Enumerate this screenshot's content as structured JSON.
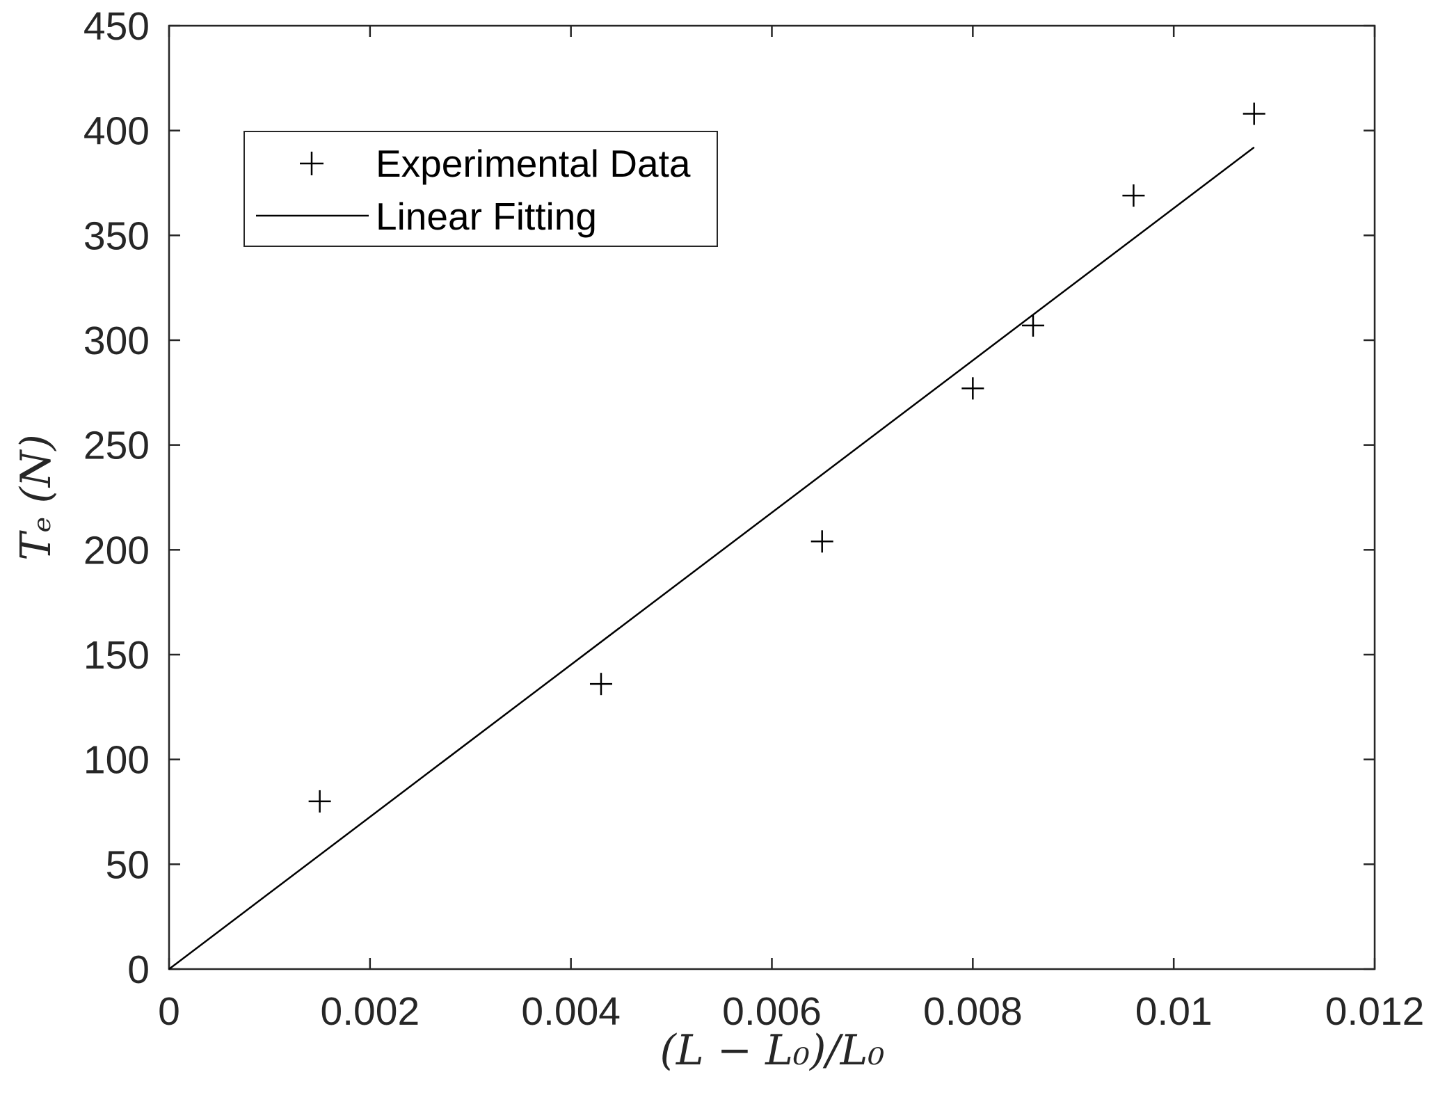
{
  "chart_data": {
    "type": "scatter",
    "xlabel": "(L − L₀)/L₀",
    "ylabel": "Tₑ (N)",
    "xlim": [
      0,
      0.012
    ],
    "ylim": [
      0,
      450
    ],
    "x_ticks": [
      0,
      0.002,
      0.004,
      0.006,
      0.008,
      0.01,
      0.012
    ],
    "x_tick_labels": [
      "0",
      "0.002",
      "0.004",
      "0.006",
      "0.008",
      "0.01",
      "0.012"
    ],
    "y_ticks": [
      0,
      50,
      100,
      150,
      200,
      250,
      300,
      350,
      400,
      450
    ],
    "y_tick_labels": [
      "0",
      "50",
      "100",
      "150",
      "200",
      "250",
      "300",
      "350",
      "400",
      "450"
    ],
    "grid": false,
    "legend_position": "top-left",
    "series": [
      {
        "name": "Experimental Data",
        "style": "markers",
        "marker": "+",
        "x": [
          0.0015,
          0.0043,
          0.0065,
          0.008,
          0.0086,
          0.0096,
          0.0108
        ],
        "y": [
          80,
          136,
          204,
          277,
          307,
          369,
          408
        ]
      },
      {
        "name": "Linear Fitting",
        "style": "line",
        "x": [
          0,
          0.0108
        ],
        "y": [
          0,
          392
        ]
      }
    ],
    "colors": {
      "axes": "#262626",
      "series": "#000000"
    }
  }
}
